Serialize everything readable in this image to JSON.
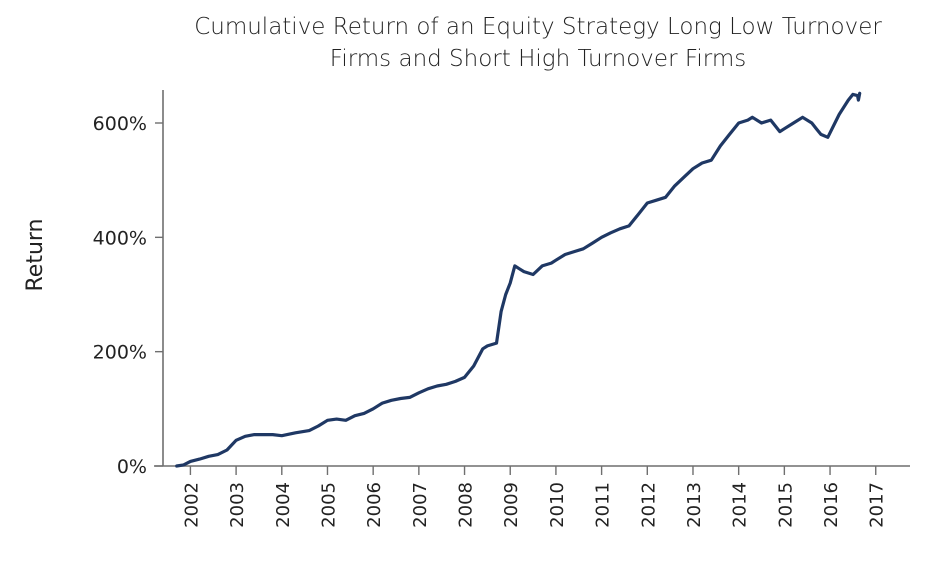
{
  "chart_data": {
    "type": "line",
    "title_lines": [
      "Cumulative Return of an Equity Strategy Long Low Turnover",
      "Firms and Short High Turnover Firms"
    ],
    "xlabel": "",
    "ylabel": "Return",
    "x_ticks": [
      "2002",
      "2003",
      "2004",
      "2005",
      "2006",
      "2007",
      "2008",
      "2009",
      "2010",
      "2011",
      "2012",
      "2013",
      "2014",
      "2015",
      "2016",
      "2017"
    ],
    "y_ticks": [
      "0%",
      "200%",
      "400%",
      "600%"
    ],
    "y_tick_values": [
      0,
      200,
      400,
      600
    ],
    "xlim": [
      2001.4,
      2017.75
    ],
    "ylim": [
      0,
      655
    ],
    "grid": false,
    "colors": {
      "series": "#1f3864",
      "axis": "#6f6f6f",
      "text": "#222222"
    },
    "series": [
      {
        "x": [
          2001.7,
          2001.85,
          2002.0,
          2002.2,
          2002.4,
          2002.6,
          2002.8,
          2003.0,
          2003.2,
          2003.4,
          2003.6,
          2003.8,
          2004.0,
          2004.3,
          2004.6,
          2004.8,
          2005.0,
          2005.2,
          2005.4,
          2005.6,
          2005.8,
          2006.0,
          2006.2,
          2006.4,
          2006.6,
          2006.8,
          2007.0,
          2007.2,
          2007.4,
          2007.6,
          2007.8,
          2008.0,
          2008.2,
          2008.4,
          2008.5,
          2008.7,
          2008.8,
          2008.9,
          2009.0,
          2009.1,
          2009.2,
          2009.3,
          2009.5,
          2009.7,
          2009.9,
          2010.0,
          2010.2,
          2010.4,
          2010.6,
          2010.8,
          2011.0,
          2011.2,
          2011.4,
          2011.6,
          2011.8,
          2012.0,
          2012.2,
          2012.4,
          2012.6,
          2012.8,
          2013.0,
          2013.2,
          2013.4,
          2013.6,
          2013.8,
          2014.0,
          2014.2,
          2014.3,
          2014.5,
          2014.7,
          2014.9,
          2015.0,
          2015.2,
          2015.4,
          2015.6,
          2015.7,
          2015.8,
          2015.95,
          2016.2,
          2016.4,
          2016.5,
          2016.6,
          2016.62,
          2016.65
        ],
        "values": [
          0,
          2,
          8,
          12,
          17,
          20,
          28,
          45,
          52,
          55,
          55,
          55,
          53,
          58,
          62,
          70,
          80,
          82,
          80,
          88,
          92,
          100,
          110,
          115,
          118,
          120,
          128,
          135,
          140,
          143,
          148,
          155,
          175,
          205,
          210,
          215,
          270,
          300,
          320,
          350,
          345,
          340,
          335,
          350,
          355,
          360,
          370,
          375,
          380,
          390,
          400,
          408,
          415,
          420,
          440,
          460,
          465,
          470,
          490,
          505,
          520,
          530,
          535,
          560,
          580,
          600,
          605,
          610,
          600,
          605,
          585,
          590,
          600,
          610,
          600,
          590,
          580,
          575,
          615,
          640,
          650,
          648,
          640,
          652
        ]
      }
    ]
  }
}
